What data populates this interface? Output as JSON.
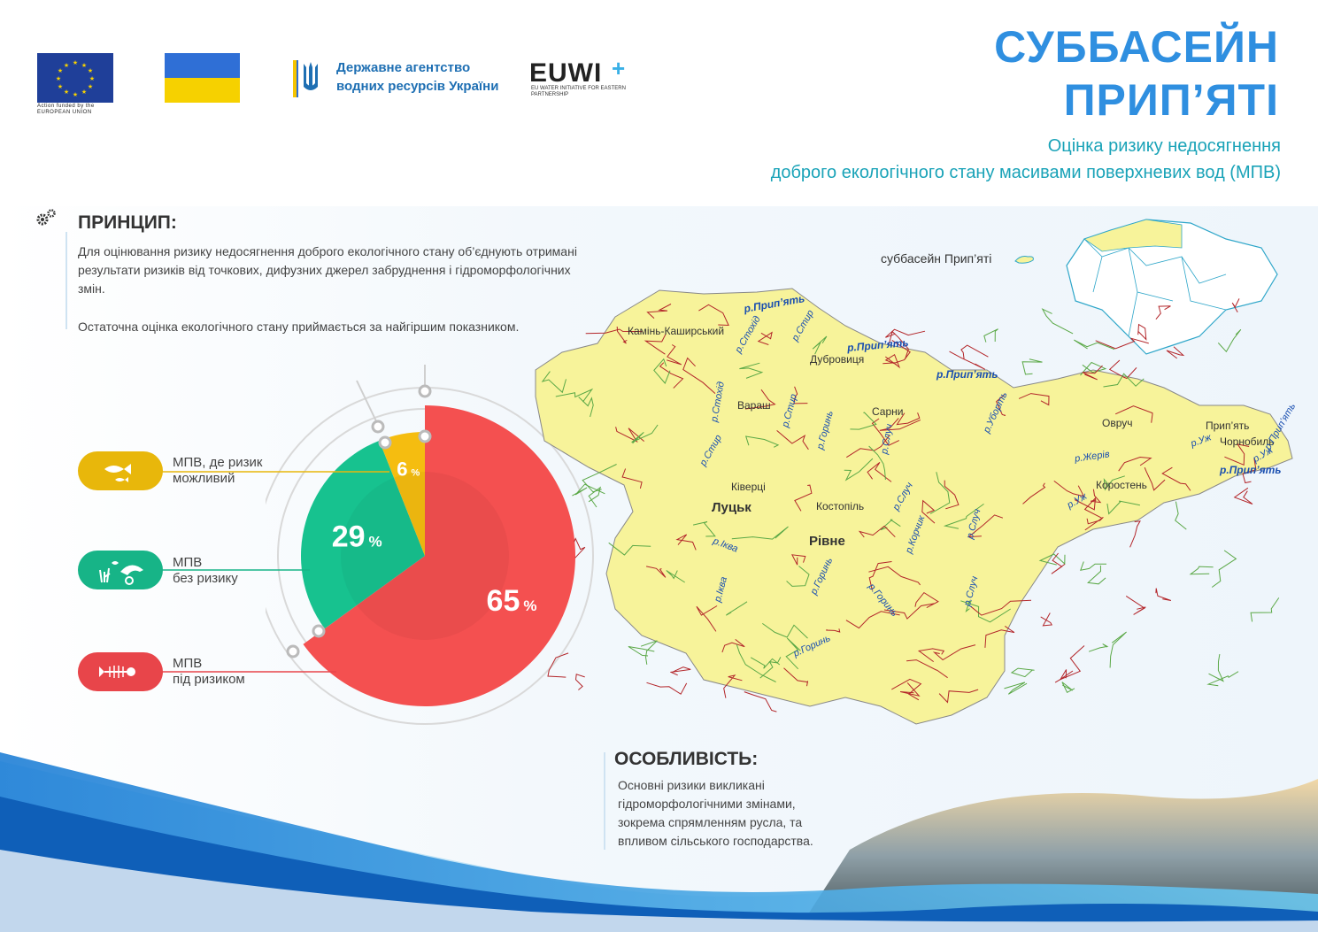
{
  "header": {
    "title_line1": "СУББАСЕЙН",
    "title_line2": "ПРИП’ЯТІ",
    "subtitle_line1": "Оцінка ризику недосягнення",
    "subtitle_line2": "доброго екологічного стану масивами поверхневих вод (МПВ)"
  },
  "logos": {
    "eu_caption": "Action funded by the EUROPEAN UNION",
    "agency_line1": "Державне агентство",
    "agency_line2": "водних ресурсів України",
    "euwi_name": "EUWI",
    "euwi_plus": "+",
    "euwi_sub": "EU WATER INITIATIVE FOR EASTERN PARTNERSHIP"
  },
  "principle": {
    "heading": "ПРИНЦИП:",
    "text1": "Для оцінювання ризику недосягнення доброго екологічного стану об’єднують отримані результати ризиків від точкових, дифузних джерел забруднення і гідроморфологічних змін.",
    "text2": "Остаточна оцінка екологічного стану приймається за найгіршим показником."
  },
  "chart_data": {
    "type": "pie",
    "unit": "%",
    "slices": [
      {
        "label_line1": "МПВ",
        "label_line2": "під ризиком",
        "value": 65,
        "color": "#f45050"
      },
      {
        "label_line1": "МПВ",
        "label_line2": "без ризику",
        "value": 29,
        "color": "#17c28f"
      },
      {
        "label_line1": "МПВ, де ризик",
        "label_line2": "можливий",
        "value": 6,
        "color": "#f5bd10"
      }
    ]
  },
  "legend": {
    "possible": {
      "line1": "МПВ, де ризик",
      "line2": "можливий",
      "color": "#e8b70b",
      "icon": "fish-icon"
    },
    "norisk": {
      "line1": "МПВ",
      "line2": "без ризику",
      "color": "#17b487",
      "icon": "sea-life-icon"
    },
    "risk": {
      "line1": "МПВ",
      "line2": "під ризиком",
      "color": "#e8454a",
      "icon": "fish-skeleton-icon"
    }
  },
  "feature": {
    "heading": "ОСОБЛИВІСТЬ:",
    "line1": "Основні ризики викликані",
    "line2": "гідроморфологічними змінами,",
    "line3": "зокрема спрямленням русла, та",
    "line4": "впливом сільського господарства."
  },
  "map": {
    "inset_label": "суббасейн Прип’яті",
    "colors": {
      "fill": "#f7f39a",
      "river_red": "#b3262a",
      "river_green": "#5aa846"
    },
    "cities": [
      "Луцьк",
      "Рівне"
    ],
    "places": [
      "Камінь-Каширський",
      "Дубровиця",
      "Вараш",
      "Сарни",
      "Ківерці",
      "Костопіль",
      "Овруч",
      "Коростень",
      "Прип’ять",
      "Чорнобиль"
    ],
    "rivers_bold": [
      "р.Прип’ять",
      "р.Прип’ять",
      "р.Прип’ять",
      "р.Прип’ять"
    ],
    "rivers": [
      "р.Стохід",
      "р.Стир",
      "р.Стохід",
      "р.Стир",
      "р.Стир",
      "р.Горинь",
      "р.Случ",
      "р.Уборть",
      "р.Жерів",
      "р.Уж",
      "р.Уж",
      "р.Уж",
      "р.Прип’ять",
      "р.Случ",
      "р.Случ",
      "р.Корчик",
      "р.Іква",
      "р.Іква",
      "р.Горинь",
      "р.Горинь",
      "р.Горинь",
      "р.Случ"
    ]
  }
}
